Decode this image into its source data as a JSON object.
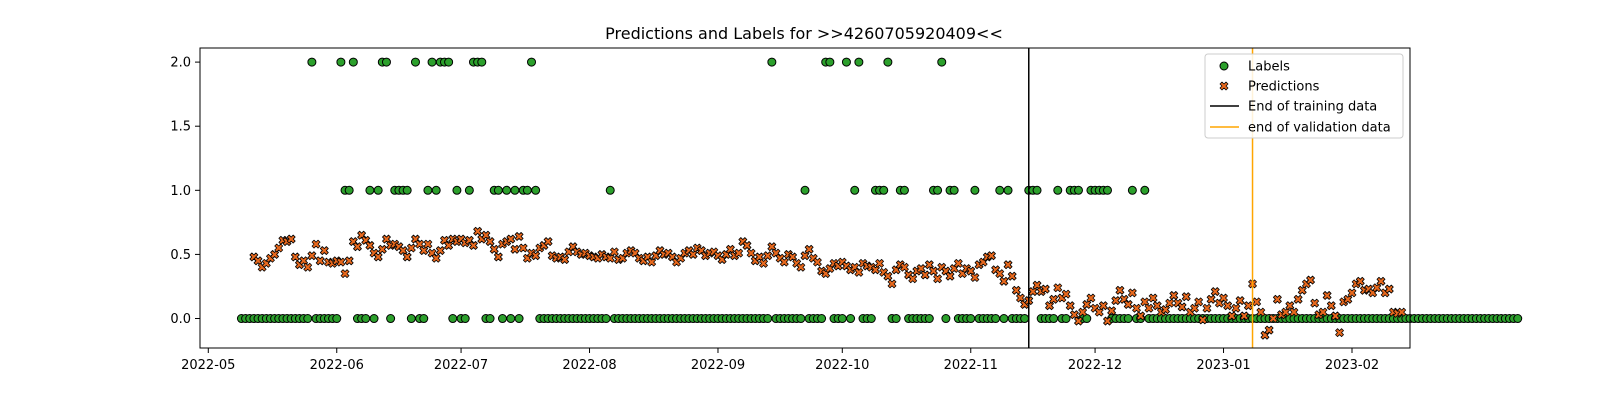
{
  "chart_data": {
    "type": "scatter",
    "title": "Predictions and Labels for >>4260705920409<<",
    "xlabel": "",
    "ylabel": "",
    "xlim": [
      "2022-04-29",
      "2023-02-15"
    ],
    "ylim": [
      -0.23,
      2.11
    ],
    "x_ticks": [
      "2022-05",
      "2022-06",
      "2022-07",
      "2022-08",
      "2022-09",
      "2022-10",
      "2022-11",
      "2022-12",
      "2023-01",
      "2023-02"
    ],
    "x_tick_dates": [
      "2022-05-01",
      "2022-06-01",
      "2022-07-01",
      "2022-08-01",
      "2022-09-01",
      "2022-10-01",
      "2022-11-01",
      "2022-12-01",
      "2023-01-01",
      "2023-02-01"
    ],
    "y_ticks": [
      "0.0",
      "0.5",
      "1.0",
      "1.5",
      "2.0"
    ],
    "y_tick_values": [
      0.0,
      0.5,
      1.0,
      1.5,
      2.0
    ],
    "grid": false,
    "legend_position": "top-right",
    "series": [
      {
        "name": "Labels",
        "marker": "circle",
        "color": "#2ca02c",
        "start_date": "2022-05-09",
        "values": [
          0,
          0,
          0,
          0,
          0,
          0,
          0,
          0,
          0,
          0,
          0,
          0,
          0,
          0,
          0,
          0,
          0,
          2,
          0,
          0,
          0,
          0,
          0,
          0,
          2,
          1,
          1,
          2,
          0,
          0,
          0,
          1,
          0,
          1,
          2,
          2,
          0,
          1,
          1,
          1,
          1,
          0,
          2,
          0,
          0,
          1,
          2,
          1,
          2,
          2,
          2,
          0,
          1,
          0,
          0,
          1,
          2,
          2,
          2,
          0,
          0,
          1,
          1,
          0,
          1,
          0,
          1,
          0,
          1,
          1,
          2,
          1,
          0,
          0,
          0,
          0,
          0,
          0,
          0,
          0,
          0,
          0,
          0,
          0,
          0,
          0,
          0,
          0,
          0,
          1,
          0,
          0,
          0,
          0,
          0,
          0,
          0,
          0,
          0,
          0,
          0,
          0,
          0,
          0,
          0,
          0,
          0,
          0,
          0,
          0,
          0,
          0,
          0,
          0,
          0,
          0,
          0,
          0,
          0,
          0,
          0,
          0,
          0,
          0,
          0,
          0,
          0,
          0,
          2,
          0,
          0,
          0,
          0,
          0,
          0,
          0,
          1,
          0,
          0,
          0,
          0,
          2,
          2,
          0,
          0,
          0,
          2,
          0,
          1,
          2,
          0,
          0,
          0,
          1,
          1,
          1,
          2,
          0,
          0,
          1,
          1,
          0,
          0,
          0,
          0,
          0,
          0,
          1,
          1,
          2,
          0,
          1,
          1,
          0,
          0,
          0,
          0,
          1,
          0,
          0,
          0,
          0,
          0,
          1,
          0,
          1,
          0,
          0,
          0,
          0,
          1,
          1,
          1,
          0,
          0,
          0,
          0,
          1,
          0,
          0,
          1,
          1,
          1,
          0,
          0,
          1,
          1,
          1,
          1,
          1,
          0,
          0,
          0,
          0,
          0,
          1,
          0,
          0,
          1,
          0,
          0,
          0,
          0,
          0,
          0,
          0,
          0,
          0,
          0,
          0,
          0,
          0,
          0,
          0,
          0,
          0,
          0,
          0,
          0,
          0,
          0,
          0,
          0,
          0,
          0,
          0,
          0,
          0,
          0,
          0,
          0,
          0,
          0,
          0,
          0,
          0,
          0,
          0,
          0,
          0,
          0,
          0,
          0,
          0,
          0,
          0,
          0,
          0,
          0,
          0,
          0,
          0,
          0,
          0,
          0,
          0,
          0,
          0,
          0,
          0,
          0,
          0,
          0,
          0,
          0,
          0,
          0,
          0,
          0,
          0,
          0,
          0,
          0,
          0,
          0,
          0,
          0,
          0,
          0,
          0,
          0,
          0,
          0,
          0,
          0,
          0,
          0,
          0,
          0
        ]
      },
      {
        "name": "Predictions",
        "marker": "x",
        "color": "#e8691e",
        "start_date": "2022-05-12",
        "values": [
          0.48,
          0.45,
          0.4,
          0.43,
          0.47,
          0.5,
          0.55,
          0.61,
          0.6,
          0.62,
          0.48,
          0.42,
          0.45,
          0.4,
          0.49,
          0.58,
          0.45,
          0.53,
          0.44,
          0.43,
          0.45,
          0.44,
          0.35,
          0.45,
          0.6,
          0.56,
          0.65,
          0.61,
          0.57,
          0.51,
          0.48,
          0.54,
          0.62,
          0.57,
          0.58,
          0.56,
          0.53,
          0.48,
          0.55,
          0.62,
          0.58,
          0.53,
          0.58,
          0.51,
          0.47,
          0.53,
          0.61,
          0.57,
          0.62,
          0.6,
          0.62,
          0.59,
          0.61,
          0.57,
          0.68,
          0.62,
          0.65,
          0.6,
          0.54,
          0.48,
          0.58,
          0.6,
          0.62,
          0.54,
          0.64,
          0.55,
          0.47,
          0.51,
          0.49,
          0.55,
          0.57,
          0.6,
          0.49,
          0.47,
          0.48,
          0.46,
          0.52,
          0.56,
          0.52,
          0.5,
          0.51,
          0.49,
          0.48,
          0.47,
          0.5,
          0.48,
          0.47,
          0.52,
          0.46,
          0.47,
          0.51,
          0.53,
          0.51,
          0.47,
          0.45,
          0.48,
          0.44,
          0.49,
          0.53,
          0.5,
          0.51,
          0.48,
          0.44,
          0.47,
          0.51,
          0.53,
          0.5,
          0.55,
          0.53,
          0.49,
          0.51,
          0.52,
          0.49,
          0.46,
          0.5,
          0.54,
          0.49,
          0.51,
          0.6,
          0.57,
          0.51,
          0.45,
          0.48,
          0.43,
          0.49,
          0.56,
          0.51,
          0.47,
          0.44,
          0.5,
          0.48,
          0.43,
          0.4,
          0.49,
          0.54,
          0.47,
          0.44,
          0.37,
          0.35,
          0.39,
          0.43,
          0.41,
          0.44,
          0.41,
          0.38,
          0.4,
          0.36,
          0.43,
          0.41,
          0.4,
          0.38,
          0.43,
          0.36,
          0.33,
          0.27,
          0.38,
          0.42,
          0.4,
          0.34,
          0.31,
          0.37,
          0.39,
          0.34,
          0.42,
          0.37,
          0.31,
          0.4,
          0.37,
          0.33,
          0.39,
          0.43,
          0.35,
          0.39,
          0.37,
          0.32,
          0.42,
          0.44,
          0.48,
          0.49,
          0.38,
          0.35,
          0.29,
          0.42,
          0.33,
          0.22,
          0.16,
          0.11,
          0.14,
          0.21,
          0.26,
          0.21,
          0.23,
          0.1,
          0.15,
          0.24,
          0.16,
          0.19,
          0.1,
          0.03,
          -0.02,
          0.05,
          0.11,
          0.16,
          0.08,
          0.05,
          0.1,
          -0.02,
          0.06,
          0.14,
          0.22,
          0.15,
          0.11,
          0.2,
          0.08,
          0.02,
          0.13,
          0.08,
          0.16,
          0.1,
          0.05,
          0.07,
          0.12,
          0.18,
          0.12,
          0.09,
          0.17,
          0.05,
          0.08,
          0.13,
          -0.01,
          0.08,
          0.15,
          0.21,
          0.12,
          0.16,
          0.1,
          0.02,
          0.08,
          0.14,
          0.02,
          0.1,
          0.27,
          0.13,
          0.05,
          -0.13,
          -0.09,
          0.0,
          0.15,
          0.03,
          0.05,
          0.1,
          0.05,
          0.15,
          0.22,
          0.27,
          0.3,
          0.12,
          0.03,
          0.05,
          0.18,
          0.1,
          0.02,
          -0.11,
          0.13,
          0.15,
          0.2,
          0.27,
          0.29,
          0.22,
          0.23,
          0.2,
          0.24,
          0.29,
          0.2,
          0.23,
          0.05,
          0.04,
          0.05
        ]
      }
    ],
    "vlines": [
      {
        "name": "End of training data",
        "date": "2022-11-15",
        "color": "#000000"
      },
      {
        "name": "end of validation data",
        "date": "2023-01-08",
        "color": "#ffa500"
      }
    ]
  }
}
